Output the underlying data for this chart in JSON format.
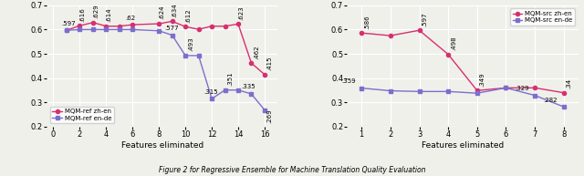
{
  "left": {
    "zh_en": {
      "x": [
        1,
        2,
        3,
        4,
        5,
        6,
        8,
        9,
        10,
        11,
        12,
        13,
        14,
        15,
        16
      ],
      "y": [
        0.597,
        0.616,
        0.629,
        0.614,
        0.614,
        0.62,
        0.624,
        0.634,
        0.612,
        0.601,
        0.614,
        0.614,
        0.623,
        0.462,
        0.415
      ],
      "labels": [
        ".597",
        ".616",
        ".629",
        ".614",
        null,
        ".62",
        ".624",
        ".634",
        ".612",
        null,
        null,
        null,
        ".623",
        ".462",
        ".415"
      ],
      "label_offsets": [
        [
          -4,
          4
        ],
        [
          0,
          4
        ],
        [
          0,
          4
        ],
        [
          0,
          4
        ],
        null,
        [
          -6,
          4
        ],
        [
          0,
          4
        ],
        [
          0,
          4
        ],
        [
          0,
          4
        ],
        null,
        null,
        null,
        [
          0,
          4
        ],
        [
          2,
          4
        ],
        [
          2,
          4
        ]
      ],
      "color": "#d63070"
    },
    "en_de": {
      "x": [
        1,
        2,
        3,
        4,
        5,
        6,
        8,
        9,
        10,
        11,
        12,
        13,
        14,
        15,
        16
      ],
      "y": [
        0.597,
        0.6,
        0.6,
        0.6,
        0.6,
        0.6,
        0.595,
        0.577,
        0.493,
        0.493,
        0.315,
        0.351,
        0.351,
        0.335,
        0.269
      ],
      "labels": [
        null,
        null,
        null,
        null,
        null,
        null,
        null,
        ".577",
        ".493",
        null,
        ".315",
        ".351",
        null,
        ".335",
        ".269"
      ],
      "label_offsets": [
        null,
        null,
        null,
        null,
        null,
        null,
        null,
        [
          -6,
          4
        ],
        [
          2,
          4
        ],
        null,
        [
          -6,
          4
        ],
        [
          2,
          4
        ],
        null,
        [
          -8,
          4
        ],
        [
          2,
          -10
        ]
      ],
      "color": "#7b6fcd"
    },
    "xlabel": "Features eliminated",
    "ylim": [
      0.2,
      0.7
    ],
    "xlim": [
      -0.5,
      17
    ],
    "yticks": [
      0.2,
      0.3,
      0.4,
      0.5,
      0.6,
      0.7
    ],
    "xticks": [
      0,
      2,
      4,
      6,
      8,
      10,
      12,
      14,
      16
    ],
    "legend_labels": [
      "MQM-ref zh-en",
      "MQM-ref en-de"
    ],
    "legend_loc": "lower left"
  },
  "right": {
    "zh_en": {
      "x": [
        1,
        2,
        3,
        4,
        5,
        6,
        7,
        8
      ],
      "y": [
        0.586,
        0.575,
        0.597,
        0.498,
        0.349,
        0.36,
        0.36,
        0.34
      ],
      "labels": [
        ".586",
        null,
        ".597",
        ".498",
        ".349",
        null,
        null,
        ".34"
      ],
      "label_offsets": [
        [
          2,
          4
        ],
        null,
        [
          2,
          4
        ],
        [
          2,
          4
        ],
        [
          2,
          4
        ],
        null,
        null,
        [
          2,
          4
        ]
      ],
      "color": "#d63070"
    },
    "en_de": {
      "x": [
        1,
        2,
        3,
        4,
        5,
        6,
        7,
        8
      ],
      "y": [
        0.359,
        0.348,
        0.345,
        0.345,
        0.338,
        0.36,
        0.329,
        0.282
      ],
      "labels": [
        ".359",
        null,
        null,
        null,
        null,
        null,
        ".329",
        ".282"
      ],
      "label_offsets": [
        [
          -16,
          4
        ],
        null,
        null,
        null,
        null,
        null,
        [
          -16,
          4
        ],
        [
          -16,
          4
        ]
      ],
      "color": "#7b6fcd"
    },
    "xlabel": "Features eliminated",
    "ylim": [
      0.2,
      0.7
    ],
    "xlim": [
      0.5,
      8.5
    ],
    "yticks": [
      0.2,
      0.3,
      0.4,
      0.5,
      0.6,
      0.7
    ],
    "xticks": [
      1,
      2,
      3,
      4,
      5,
      6,
      7,
      8
    ],
    "legend_labels": [
      "MQM-src zh-en",
      "MQM-src en-de"
    ],
    "legend_loc": "upper right"
  },
  "bg_color": "#f0f0eb",
  "grid_color": "#ffffff",
  "caption": "Figure 2 for Regressive Ensemble for Machine Translation Quality Evaluation"
}
